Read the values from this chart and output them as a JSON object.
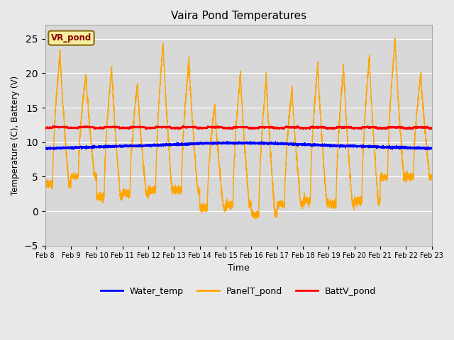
{
  "title": "Vaira Pond Temperatures",
  "xlabel": "Time",
  "ylabel": "Temperature (C), Battery (V)",
  "ylim": [
    -5,
    27
  ],
  "yticks": [
    -5,
    0,
    5,
    10,
    15,
    20,
    25
  ],
  "date_labels": [
    "Feb 8",
    "Feb 9",
    "Feb 10",
    "Feb 11",
    "Feb 12",
    "Feb 13",
    "Feb 14",
    "Feb 15",
    "Feb 16",
    "Feb 17",
    "Feb 18",
    "Feb 19",
    "Feb 20",
    "Feb 21",
    "Feb 22",
    "Feb 23"
  ],
  "n_days": 15,
  "background_color": "#e8e8e8",
  "plot_bg_color": "#d8d8d8",
  "water_temp_color": "blue",
  "panel_temp_color": "orange",
  "batt_color": "red",
  "annotation_text": "VR_pond",
  "annotation_box_color": "#f5f0a0",
  "annotation_border_color": "#8B6914",
  "day_peaks": [
    23,
    20,
    21,
    18.5,
    24.5,
    22,
    15.5,
    20,
    19.5,
    18,
    21.5,
    21,
    22.5,
    25,
    20
  ],
  "day_troughs": [
    4,
    5,
    2,
    2.5,
    3,
    3,
    0.5,
    1,
    -0.5,
    1,
    1.5,
    1,
    1.5,
    5,
    5
  ],
  "batt_base": 12.2,
  "water_base": 9.1
}
